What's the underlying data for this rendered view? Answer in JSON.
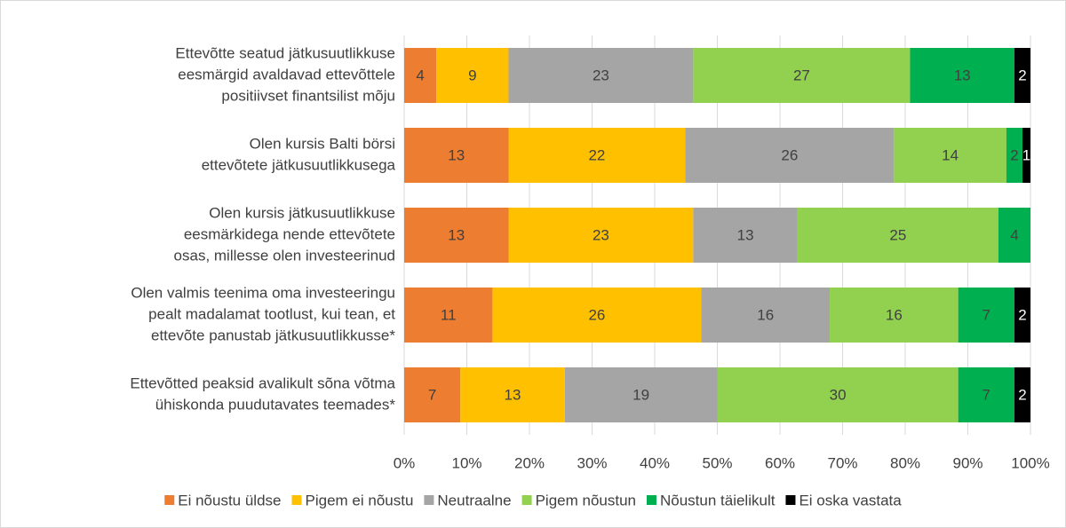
{
  "chart_data": {
    "type": "stacked_percent_barh",
    "categories": [
      [
        "Ettevõtte seatud jätkusuutlikkuse",
        "eesmärgid avaldavad ettevõttele",
        "positiivset finantsilist mõju"
      ],
      [
        "Olen kursis Balti börsi",
        "ettevõtete jätkusuutlikkusega"
      ],
      [
        "Olen kursis jätkusuutlikkuse",
        "eesmärkidega nende ettevõtete",
        "osas, millesse olen investeerinud"
      ],
      [
        "Olen valmis teenima oma investeeringu",
        "pealt madalamat tootlust, kui tean, et",
        "ettevõte panustab jätkusuutlikkusse*"
      ],
      [
        "Ettevõtted peaksid avalikult sõna võtma",
        "ühiskonda puudutavates teemades*"
      ]
    ],
    "series": [
      {
        "name": "Ei nõustu üldse",
        "color": "#ED7D31",
        "values": [
          4,
          13,
          13,
          11,
          7
        ]
      },
      {
        "name": "Pigem ei nõustu",
        "color": "#FFC000",
        "values": [
          9,
          22,
          23,
          26,
          13
        ]
      },
      {
        "name": "Neutraalne",
        "color": "#A5A5A5",
        "values": [
          23,
          26,
          13,
          16,
          19
        ]
      },
      {
        "name": "Pigem nõustun",
        "color": "#92D050",
        "values": [
          27,
          14,
          25,
          16,
          30
        ]
      },
      {
        "name": "Nõustun täielikult",
        "color": "#00B050",
        "values": [
          13,
          2,
          4,
          7,
          7
        ]
      },
      {
        "name": "Ei oska vastata",
        "color": "#000000",
        "values": [
          2,
          1,
          0,
          2,
          2
        ]
      }
    ],
    "xlim": [
      0,
      100
    ],
    "xticks": [
      {
        "value": 0,
        "label": "0%"
      },
      {
        "value": 10,
        "label": "10%"
      },
      {
        "value": 20,
        "label": "20%"
      },
      {
        "value": 30,
        "label": "30%"
      },
      {
        "value": 40,
        "label": "40%"
      },
      {
        "value": 50,
        "label": "50%"
      },
      {
        "value": 60,
        "label": "60%"
      },
      {
        "value": 70,
        "label": "70%"
      },
      {
        "value": 80,
        "label": "80%"
      },
      {
        "value": 90,
        "label": "90%"
      },
      {
        "value": 100,
        "label": "100%"
      }
    ],
    "grid": true,
    "legend": "bottom"
  }
}
